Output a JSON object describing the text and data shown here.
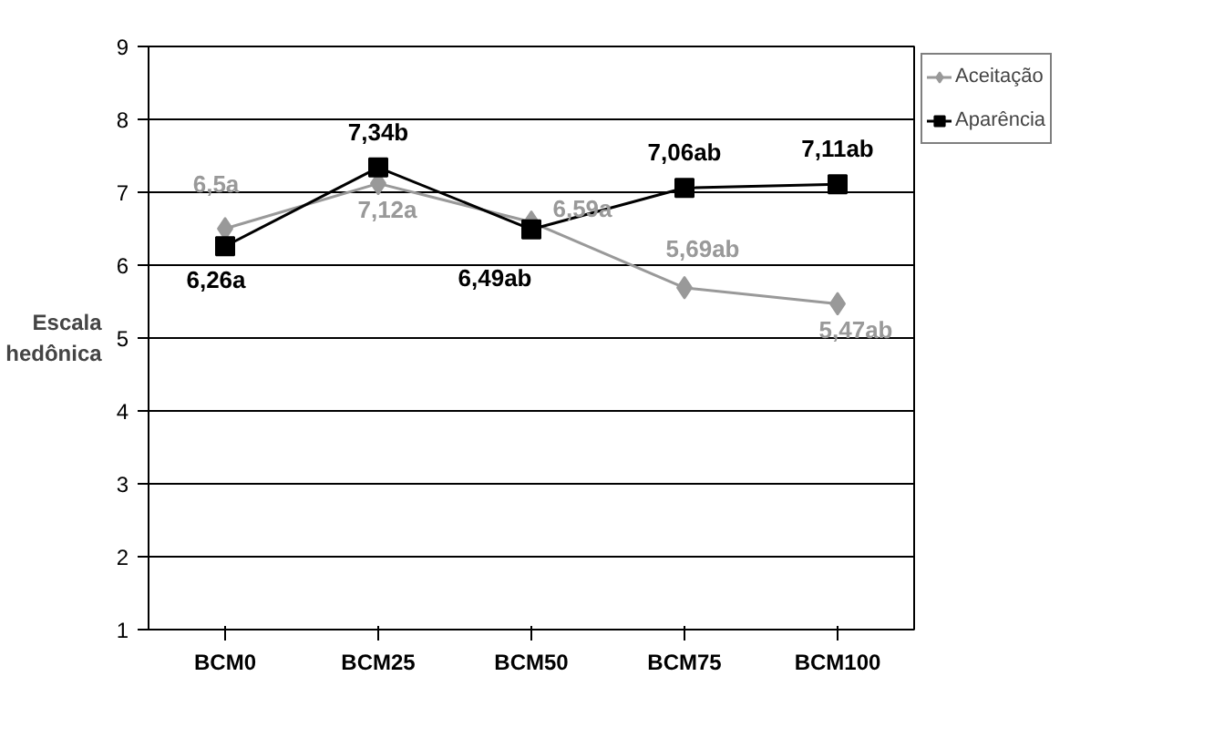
{
  "chart_data": {
    "type": "line",
    "ylabel": "Escala\nhedônica",
    "categories": [
      "BCM0",
      "BCM25",
      "BCM50",
      "BCM75",
      "BCM100"
    ],
    "ylim": [
      1,
      9
    ],
    "yticks": [
      1,
      2,
      3,
      4,
      5,
      6,
      7,
      8,
      9
    ],
    "grid": "y",
    "legend": "right",
    "series": [
      {
        "name": "Aceitação",
        "color": "#999999",
        "marker": "diamond",
        "values": [
          6.5,
          7.12,
          6.59,
          5.69,
          5.47
        ],
        "value_labels": [
          "6,5a",
          "7,12a",
          "6,59a",
          "5,69ab",
          "5,47ab"
        ]
      },
      {
        "name": "Aparência",
        "color": "#000000",
        "marker": "square",
        "values": [
          6.26,
          7.34,
          6.49,
          7.06,
          7.11
        ],
        "value_labels": [
          "6,26a",
          "7,34b",
          "6,49ab",
          "7,06ab",
          "7,11ab"
        ]
      }
    ]
  }
}
